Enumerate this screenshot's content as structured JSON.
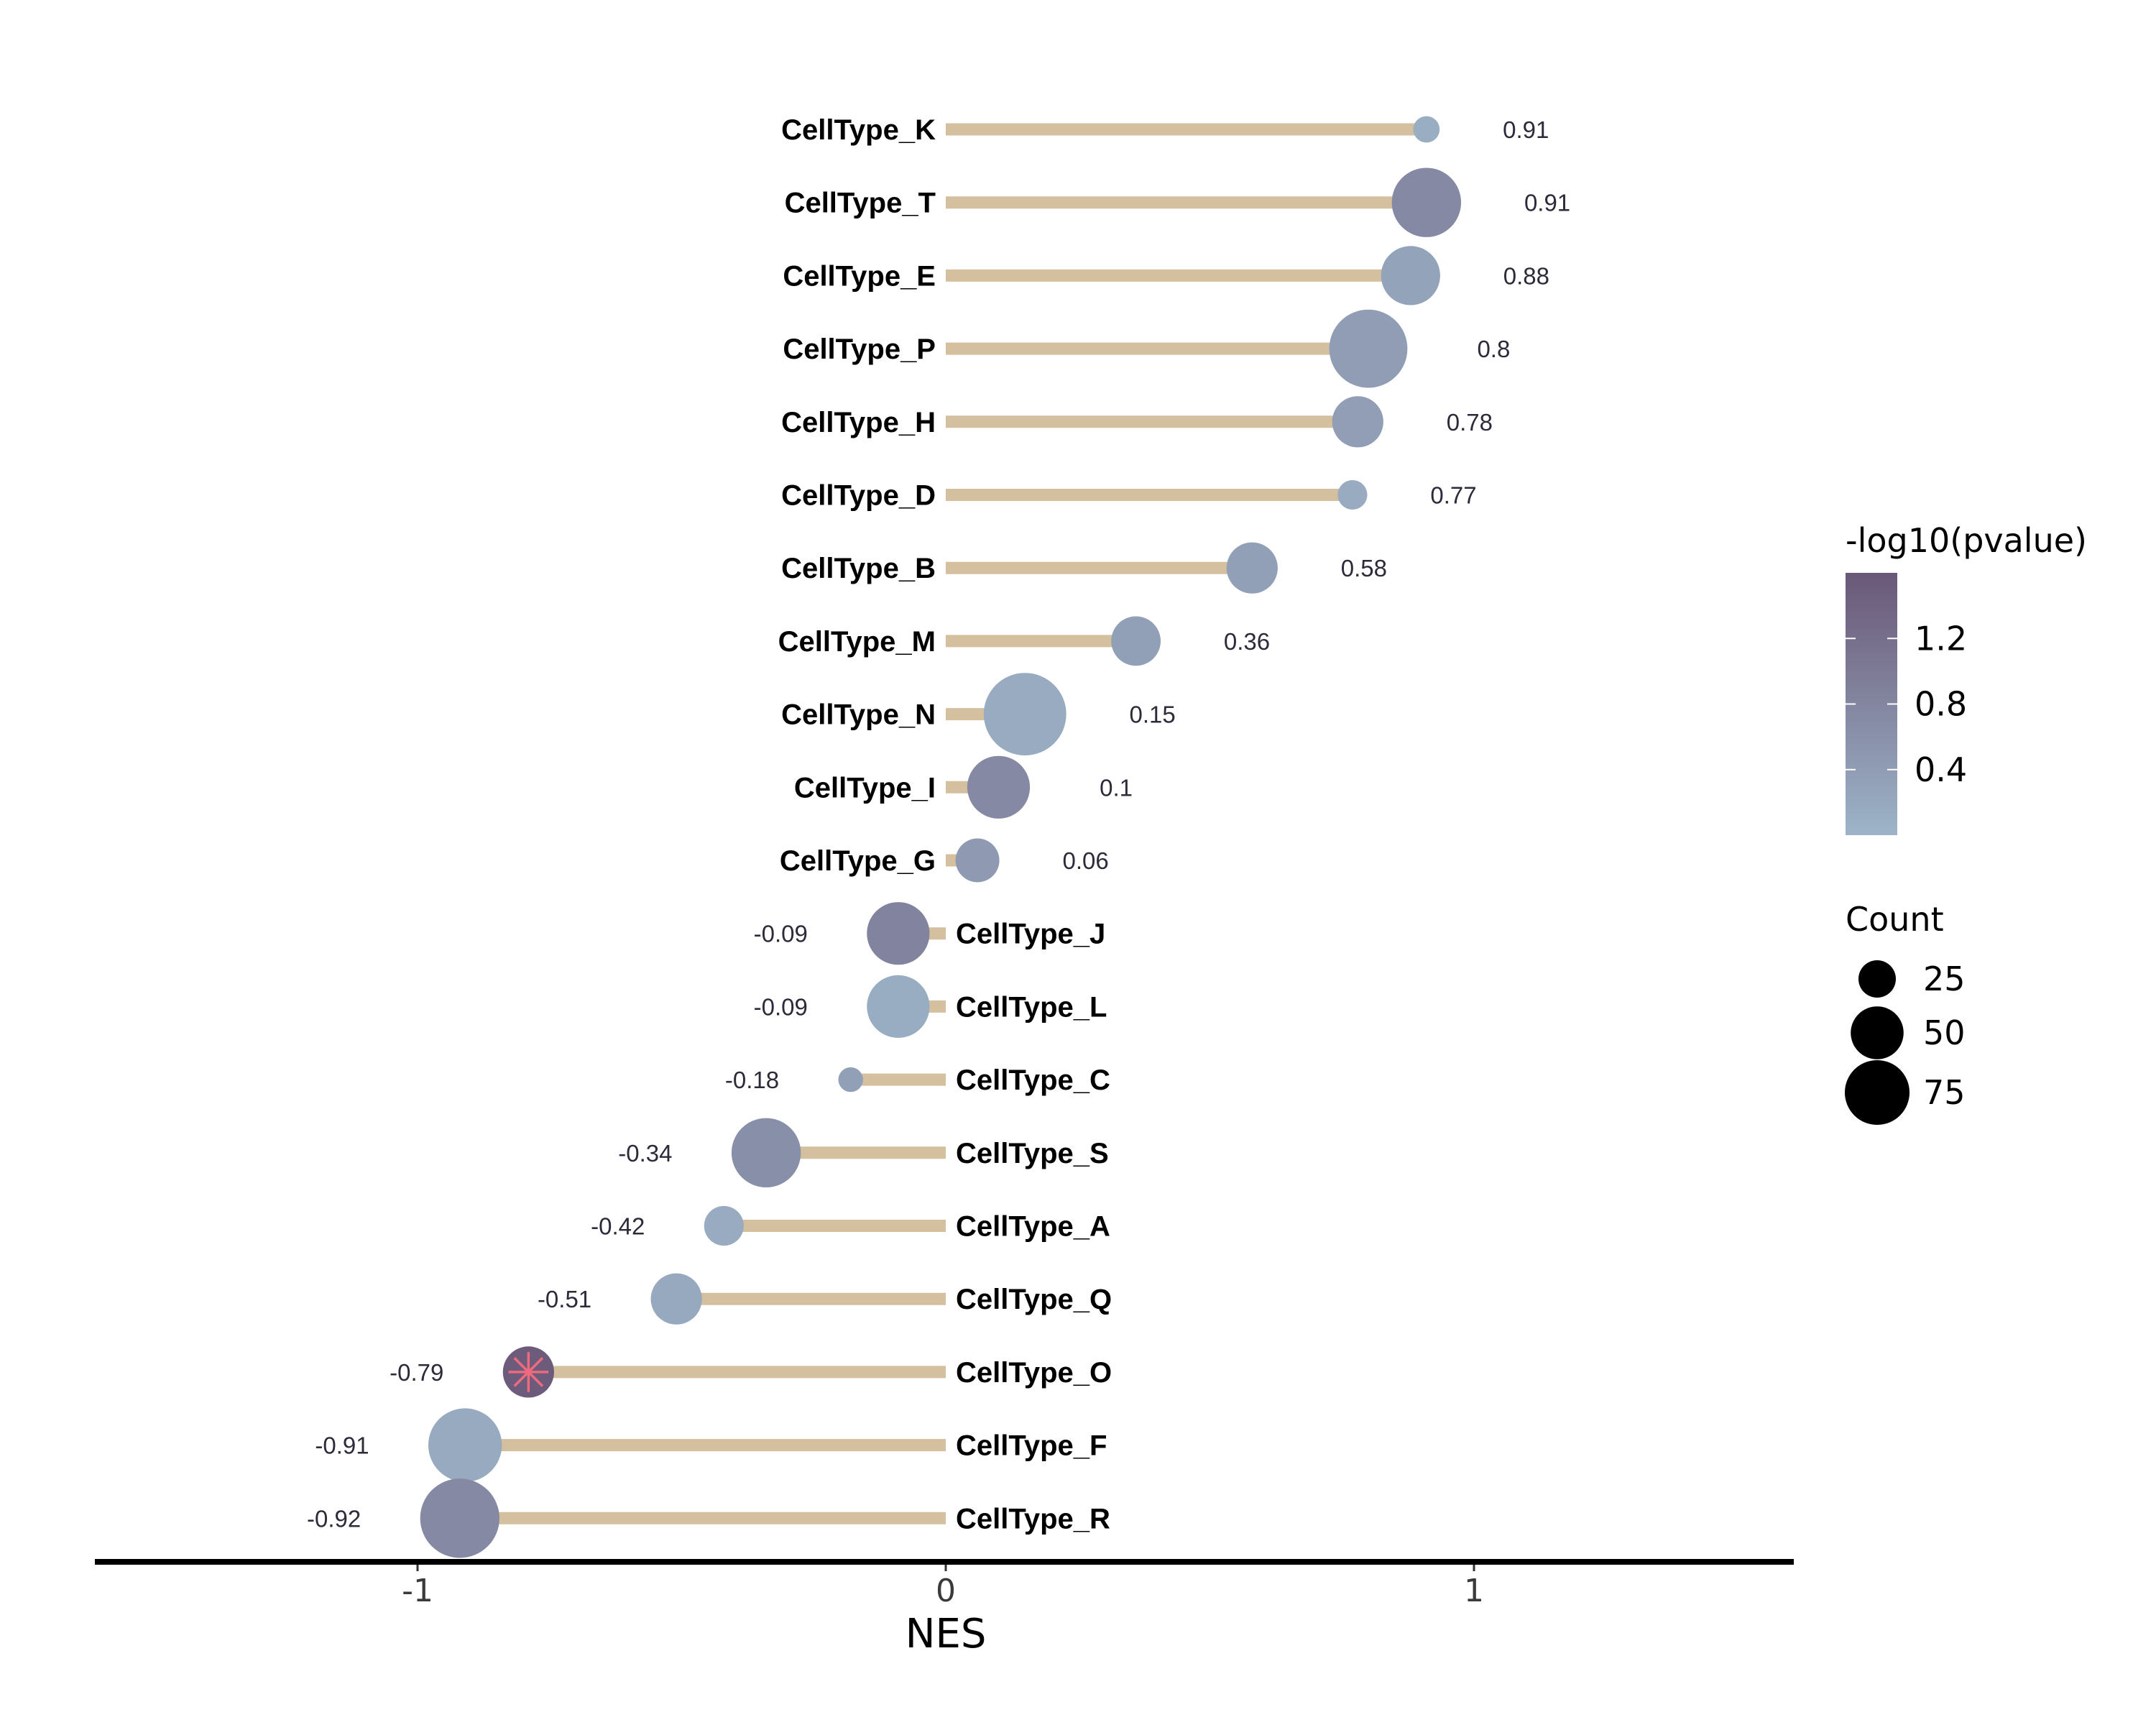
{
  "chart_data": {
    "type": "lollipop",
    "title": "",
    "xlabel": "NES",
    "ylabel": "",
    "xlim": [
      -1.6,
      1.6
    ],
    "x_ticks": [
      {
        "value": -1,
        "label": "-1"
      },
      {
        "value": 0,
        "label": "0"
      },
      {
        "value": 1,
        "label": "1"
      }
    ],
    "grid": false,
    "stick_color": "#d4bf9f",
    "highlight_marker_color": "#f06a7e",
    "categories": [
      "CellType_K",
      "CellType_T",
      "CellType_E",
      "CellType_P",
      "CellType_H",
      "CellType_D",
      "CellType_B",
      "CellType_M",
      "CellType_N",
      "CellType_I",
      "CellType_G",
      "CellType_J",
      "CellType_L",
      "CellType_C",
      "CellType_S",
      "CellType_A",
      "CellType_Q",
      "CellType_O",
      "CellType_F",
      "CellType_R"
    ],
    "points": [
      {
        "name": "CellType_K",
        "nes": 0.91,
        "label": "0.91",
        "count": 8,
        "neglog10p": 0.1,
        "highlight": false
      },
      {
        "name": "CellType_T",
        "nes": 0.91,
        "label": "0.91",
        "count": 55,
        "neglog10p": 0.75,
        "highlight": false
      },
      {
        "name": "CellType_E",
        "nes": 0.88,
        "label": "0.88",
        "count": 40,
        "neglog10p": 0.3,
        "highlight": false
      },
      {
        "name": "CellType_P",
        "nes": 0.8,
        "label": "0.8",
        "count": 70,
        "neglog10p": 0.4,
        "highlight": false
      },
      {
        "name": "CellType_H",
        "nes": 0.78,
        "label": "0.78",
        "count": 30,
        "neglog10p": 0.38,
        "highlight": false
      },
      {
        "name": "CellType_D",
        "nes": 0.77,
        "label": "0.77",
        "count": 10,
        "neglog10p": 0.15,
        "highlight": false
      },
      {
        "name": "CellType_B",
        "nes": 0.58,
        "label": "0.58",
        "count": 30,
        "neglog10p": 0.35,
        "highlight": false
      },
      {
        "name": "CellType_M",
        "nes": 0.36,
        "label": "0.36",
        "count": 28,
        "neglog10p": 0.35,
        "highlight": false
      },
      {
        "name": "CellType_N",
        "nes": 0.15,
        "label": "0.15",
        "count": 78,
        "neglog10p": 0.15,
        "highlight": false
      },
      {
        "name": "CellType_I",
        "nes": 0.1,
        "label": "0.1",
        "count": 45,
        "neglog10p": 0.75,
        "highlight": false
      },
      {
        "name": "CellType_G",
        "nes": 0.06,
        "label": "0.06",
        "count": 22,
        "neglog10p": 0.45,
        "highlight": false
      },
      {
        "name": "CellType_J",
        "nes": -0.09,
        "label": "-0.09",
        "count": 45,
        "neglog10p": 0.85,
        "highlight": false
      },
      {
        "name": "CellType_L",
        "nes": -0.09,
        "label": "-0.09",
        "count": 45,
        "neglog10p": 0.12,
        "highlight": false
      },
      {
        "name": "CellType_C",
        "nes": -0.18,
        "label": "-0.18",
        "count": 7,
        "neglog10p": 0.35,
        "highlight": false
      },
      {
        "name": "CellType_S",
        "nes": -0.34,
        "label": "-0.34",
        "count": 55,
        "neglog10p": 0.65,
        "highlight": false
      },
      {
        "name": "CellType_A",
        "nes": -0.42,
        "label": "-0.42",
        "count": 18,
        "neglog10p": 0.15,
        "highlight": false
      },
      {
        "name": "CellType_Q",
        "nes": -0.51,
        "label": "-0.51",
        "count": 30,
        "neglog10p": 0.2,
        "highlight": false
      },
      {
        "name": "CellType_O",
        "nes": -0.79,
        "label": "-0.79",
        "count": 30,
        "neglog10p": 1.55,
        "highlight": true
      },
      {
        "name": "CellType_F",
        "nes": -0.91,
        "label": "-0.91",
        "count": 62,
        "neglog10p": 0.18,
        "highlight": false
      },
      {
        "name": "CellType_R",
        "nes": -0.92,
        "label": "-0.92",
        "count": 72,
        "neglog10p": 0.75,
        "highlight": false
      }
    ],
    "color_legend": {
      "title": "-log10(pvalue)",
      "range": [
        0.0,
        1.6
      ],
      "low_color": "#9db4c8",
      "high_color": "#6a5878",
      "ticks": [
        {
          "value": 0.4,
          "label": "0.4"
        },
        {
          "value": 0.8,
          "label": "0.8"
        },
        {
          "value": 1.2,
          "label": "1.2"
        }
      ]
    },
    "size_legend": {
      "title": "Count",
      "entries": [
        {
          "value": 25,
          "label": "25"
        },
        {
          "value": 50,
          "label": "50"
        },
        {
          "value": 75,
          "label": "75"
        }
      ]
    }
  }
}
